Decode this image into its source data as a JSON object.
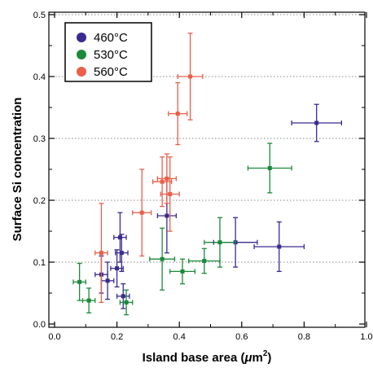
{
  "chart_data": {
    "type": "scatter",
    "xlabel": "Island base area",
    "xlabel_unit_mu": "μ",
    "xlabel_unit_m": "m",
    "xlabel_unit_sup": "2",
    "ylabel": "Surface Si concentration",
    "xlim": [
      0.0,
      1.0
    ],
    "ylim": [
      0.0,
      0.5
    ],
    "x_ticks": [
      "0.0",
      "0.2",
      "0.4",
      "0.6",
      "0.8",
      "1.0"
    ],
    "y_ticks": [
      "0.0",
      "0.1",
      "0.2",
      "0.3",
      "0.4",
      "0.5"
    ],
    "grid": "horizontal dotted",
    "legend_position": "top-left",
    "series": [
      {
        "name": "460°C",
        "color": "#3b2a8f",
        "points": [
          {
            "x": 0.15,
            "y": 0.08,
            "xerr": 0.02,
            "yerr": 0.03
          },
          {
            "x": 0.17,
            "y": 0.07,
            "xerr": 0.02,
            "yerr": 0.03
          },
          {
            "x": 0.2,
            "y": 0.09,
            "xerr": 0.02,
            "yerr": 0.03
          },
          {
            "x": 0.21,
            "y": 0.14,
            "xerr": 0.02,
            "yerr": 0.04
          },
          {
            "x": 0.215,
            "y": 0.115,
            "xerr": 0.02,
            "yerr": 0.03
          },
          {
            "x": 0.22,
            "y": 0.045,
            "xerr": 0.02,
            "yerr": 0.02
          },
          {
            "x": 0.36,
            "y": 0.175,
            "xerr": 0.03,
            "yerr": 0.06
          },
          {
            "x": 0.58,
            "y": 0.132,
            "xerr": 0.07,
            "yerr": 0.04
          },
          {
            "x": 0.72,
            "y": 0.125,
            "xerr": 0.08,
            "yerr": 0.04
          },
          {
            "x": 0.84,
            "y": 0.325,
            "xerr": 0.08,
            "yerr": 0.03
          }
        ]
      },
      {
        "name": "530°C",
        "color": "#1a8a3a",
        "points": [
          {
            "x": 0.08,
            "y": 0.068,
            "xerr": 0.02,
            "yerr": 0.03
          },
          {
            "x": 0.11,
            "y": 0.038,
            "xerr": 0.02,
            "yerr": 0.02
          },
          {
            "x": 0.23,
            "y": 0.035,
            "xerr": 0.02,
            "yerr": 0.02
          },
          {
            "x": 0.345,
            "y": 0.105,
            "xerr": 0.04,
            "yerr": 0.05
          },
          {
            "x": 0.41,
            "y": 0.085,
            "xerr": 0.04,
            "yerr": 0.02
          },
          {
            "x": 0.48,
            "y": 0.102,
            "xerr": 0.05,
            "yerr": 0.02
          },
          {
            "x": 0.53,
            "y": 0.132,
            "xerr": 0.05,
            "yerr": 0.04
          },
          {
            "x": 0.69,
            "y": 0.252,
            "xerr": 0.07,
            "yerr": 0.04
          }
        ]
      },
      {
        "name": "560°C",
        "color": "#e8604a",
        "points": [
          {
            "x": 0.15,
            "y": 0.115,
            "xerr": 0.02,
            "yerr": 0.08
          },
          {
            "x": 0.28,
            "y": 0.18,
            "xerr": 0.03,
            "yerr": 0.07
          },
          {
            "x": 0.345,
            "y": 0.23,
            "xerr": 0.03,
            "yerr": 0.04
          },
          {
            "x": 0.36,
            "y": 0.235,
            "xerr": 0.03,
            "yerr": 0.04
          },
          {
            "x": 0.37,
            "y": 0.21,
            "xerr": 0.03,
            "yerr": 0.06
          },
          {
            "x": 0.395,
            "y": 0.34,
            "xerr": 0.03,
            "yerr": 0.05
          },
          {
            "x": 0.435,
            "y": 0.4,
            "xerr": 0.04,
            "yerr": 0.07
          }
        ]
      }
    ]
  }
}
